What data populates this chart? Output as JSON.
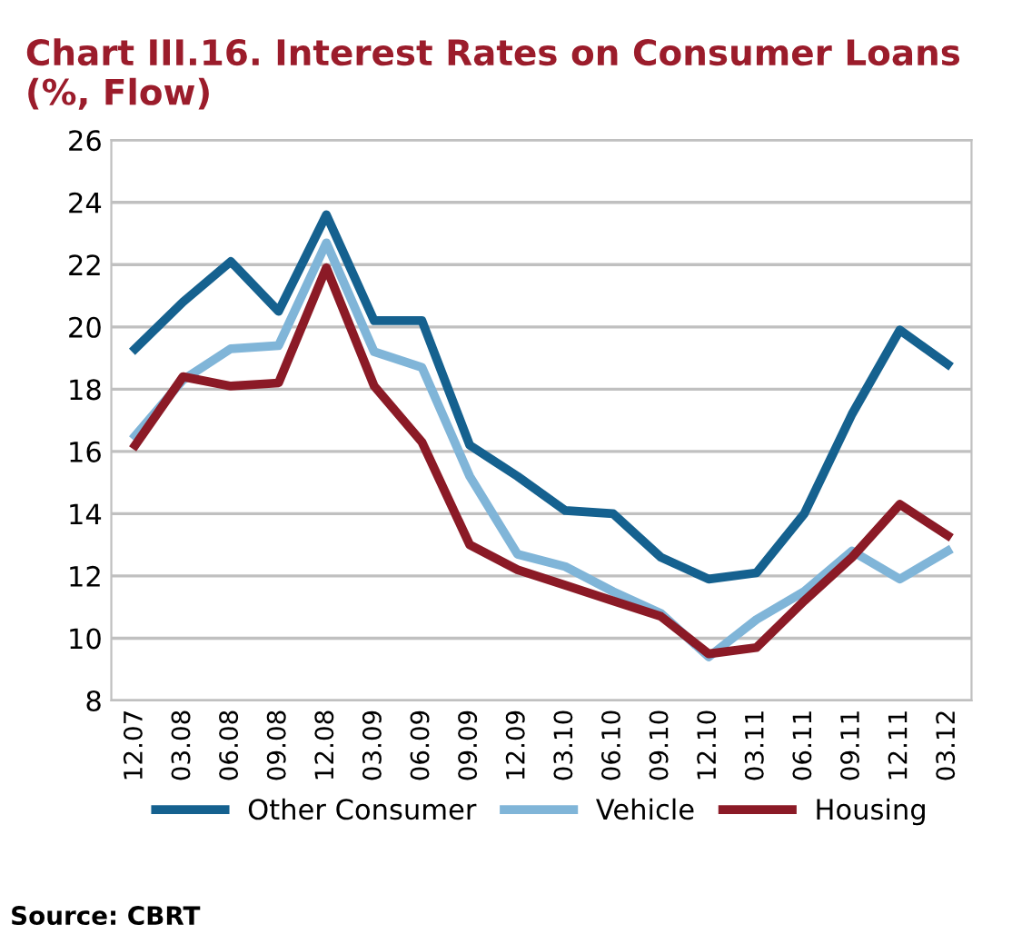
{
  "chart_data": {
    "type": "line",
    "title": "Chart III.16. Interest Rates on Consumer Loans\n(%, Flow)",
    "categories": [
      "12.07",
      "03.08",
      "06.08",
      "09.08",
      "12.08",
      "03.09",
      "06.09",
      "09.09",
      "12.09",
      "03.10",
      "06.10",
      "09.10",
      "12.10",
      "03.11",
      "06.11",
      "09.11",
      "12.11",
      "03.12"
    ],
    "series": [
      {
        "name": "Other Consumer",
        "color": "#15618f",
        "values": [
          19.3,
          20.8,
          22.1,
          20.5,
          23.6,
          20.2,
          20.2,
          16.2,
          15.2,
          14.1,
          14.0,
          12.6,
          11.9,
          12.1,
          14.0,
          17.2,
          19.9,
          18.8
        ]
      },
      {
        "name": "Vehicle",
        "color": "#80b5d8",
        "values": [
          16.5,
          18.3,
          19.3,
          19.4,
          22.7,
          19.2,
          18.7,
          15.2,
          12.7,
          12.3,
          11.5,
          10.8,
          9.4,
          10.6,
          11.5,
          12.8,
          11.9,
          12.8
        ]
      },
      {
        "name": "Housing",
        "color": "#8b1a26",
        "values": [
          16.2,
          18.4,
          18.1,
          18.2,
          21.9,
          18.1,
          16.3,
          13.0,
          12.2,
          11.7,
          11.2,
          10.7,
          9.5,
          9.7,
          11.2,
          12.6,
          14.3,
          13.3
        ]
      }
    ],
    "ylim": [
      8,
      26
    ],
    "yticks": [
      8,
      10,
      12,
      14,
      16,
      18,
      20,
      22,
      24,
      26
    ],
    "grid": "y",
    "legend": "bottom",
    "annotations": [
      "Source: CBRT"
    ]
  }
}
